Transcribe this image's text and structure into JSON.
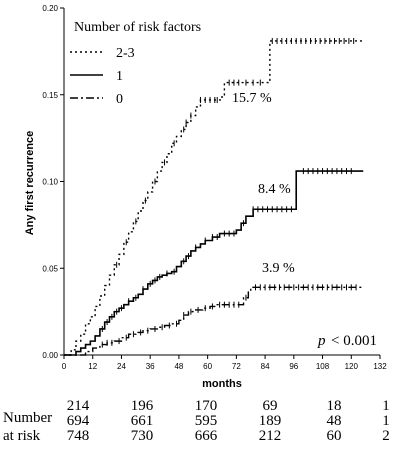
{
  "chart_data": {
    "type": "line",
    "subtype": "kaplan-meier step curves (cumulative incidence)",
    "xlabel": "months",
    "ylabel": "Any first recurrence",
    "xlim": [
      0,
      132
    ],
    "ylim": [
      0,
      0.2
    ],
    "x_ticks": [
      "0",
      "12",
      "24",
      "36",
      "48",
      "60",
      "72",
      "84",
      "96",
      "108",
      "120",
      "132"
    ],
    "y_ticks": [
      "0.00",
      "0.05",
      "0.10",
      "0.15",
      "0.20"
    ],
    "grid": false,
    "legend": {
      "title": "Number of risk factors",
      "placement": "top-left",
      "entries": [
        {
          "label": "2-3",
          "style": "dotted"
        },
        {
          "label": "1",
          "style": "solid"
        },
        {
          "label": "0",
          "style": "dash-dot"
        }
      ]
    },
    "series": [
      {
        "name": "2-3",
        "style": "dotted",
        "annotation": "15.7 %",
        "points": [
          [
            0,
            0
          ],
          [
            3,
            0.003
          ],
          [
            5,
            0.008
          ],
          [
            7,
            0.012
          ],
          [
            9,
            0.018
          ],
          [
            11,
            0.022
          ],
          [
            13,
            0.028
          ],
          [
            15,
            0.034
          ],
          [
            17,
            0.04
          ],
          [
            19,
            0.046
          ],
          [
            21,
            0.052
          ],
          [
            23,
            0.058
          ],
          [
            25,
            0.065
          ],
          [
            27,
            0.071
          ],
          [
            29,
            0.077
          ],
          [
            31,
            0.083
          ],
          [
            33,
            0.089
          ],
          [
            35,
            0.094
          ],
          [
            37,
            0.1
          ],
          [
            39,
            0.106
          ],
          [
            41,
            0.111
          ],
          [
            43,
            0.116
          ],
          [
            45,
            0.122
          ],
          [
            47,
            0.126
          ],
          [
            49,
            0.13
          ],
          [
            51,
            0.134
          ],
          [
            53,
            0.138
          ],
          [
            55,
            0.143
          ],
          [
            57,
            0.147
          ],
          [
            66,
            0.15
          ],
          [
            67,
            0.157
          ],
          [
            86,
            0.157
          ],
          [
            86,
            0.181
          ],
          [
            125,
            0.181
          ]
        ],
        "censor_x": [
          22,
          26,
          30,
          34,
          38,
          42,
          46,
          50,
          51,
          53,
          57,
          59,
          61,
          63,
          64,
          69,
          71,
          73,
          76,
          79,
          82,
          87,
          89,
          91,
          93,
          95,
          97,
          99,
          101,
          103,
          105,
          107,
          109,
          111,
          113,
          115,
          117,
          119,
          121
        ]
      },
      {
        "name": "1",
        "style": "solid",
        "annotation": "8.4 %",
        "points": [
          [
            0,
            0
          ],
          [
            3,
            0.0
          ],
          [
            5,
            0.002
          ],
          [
            7,
            0.004
          ],
          [
            9,
            0.006
          ],
          [
            11,
            0.008
          ],
          [
            13,
            0.011
          ],
          [
            15,
            0.015
          ],
          [
            17,
            0.019
          ],
          [
            19,
            0.022
          ],
          [
            21,
            0.025
          ],
          [
            23,
            0.027
          ],
          [
            25,
            0.029
          ],
          [
            27,
            0.031
          ],
          [
            29,
            0.033
          ],
          [
            31,
            0.035
          ],
          [
            33,
            0.038
          ],
          [
            35,
            0.041
          ],
          [
            37,
            0.043
          ],
          [
            39,
            0.045
          ],
          [
            41,
            0.046
          ],
          [
            43,
            0.047
          ],
          [
            45,
            0.048
          ],
          [
            47,
            0.051
          ],
          [
            49,
            0.054
          ],
          [
            51,
            0.057
          ],
          [
            53,
            0.06
          ],
          [
            55,
            0.062
          ],
          [
            57,
            0.064
          ],
          [
            59,
            0.066
          ],
          [
            62,
            0.068
          ],
          [
            65,
            0.07
          ],
          [
            72,
            0.072
          ],
          [
            74,
            0.076
          ],
          [
            76,
            0.08
          ],
          [
            79,
            0.084
          ],
          [
            97,
            0.084
          ],
          [
            97,
            0.106
          ],
          [
            125,
            0.106
          ]
        ],
        "censor_x": [
          16,
          18,
          20,
          22,
          24,
          27,
          30,
          33,
          36,
          38,
          40,
          43,
          46,
          50,
          52,
          55,
          59,
          62,
          64,
          67,
          69,
          71,
          75,
          79,
          81,
          83,
          85,
          87,
          89,
          91,
          93,
          95,
          100,
          102,
          104,
          106,
          108,
          110,
          112,
          114,
          116,
          118,
          120
        ]
      },
      {
        "name": "0",
        "style": "dash-dot",
        "annotation": "3.9 %",
        "points": [
          [
            0,
            0
          ],
          [
            6,
            0.0
          ],
          [
            9,
            0.002
          ],
          [
            12,
            0.004
          ],
          [
            15,
            0.006
          ],
          [
            18,
            0.007
          ],
          [
            21,
            0.008
          ],
          [
            24,
            0.01
          ],
          [
            27,
            0.012
          ],
          [
            30,
            0.013
          ],
          [
            33,
            0.014
          ],
          [
            36,
            0.015
          ],
          [
            39,
            0.016
          ],
          [
            42,
            0.017
          ],
          [
            45,
            0.018
          ],
          [
            48,
            0.02
          ],
          [
            50,
            0.023
          ],
          [
            52,
            0.025
          ],
          [
            55,
            0.026
          ],
          [
            58,
            0.027
          ],
          [
            61,
            0.028
          ],
          [
            64,
            0.029
          ],
          [
            74,
            0.029
          ],
          [
            75,
            0.033
          ],
          [
            77,
            0.037
          ],
          [
            78,
            0.039
          ],
          [
            125,
            0.039
          ]
        ],
        "censor_x": [
          16,
          18,
          20,
          23,
          26,
          29,
          32,
          35,
          38,
          41,
          44,
          47,
          50,
          53,
          56,
          59,
          62,
          65,
          67,
          69,
          71,
          73,
          76,
          80,
          82,
          84,
          86,
          88,
          90,
          92,
          94,
          96,
          98,
          100,
          102,
          104,
          106,
          108,
          110,
          112,
          114,
          116,
          118,
          120,
          122
        ]
      }
    ],
    "annotations": [
      {
        "text": "15.7 %"
      },
      {
        "text": "8.4 %"
      },
      {
        "text": "3.9 %"
      }
    ],
    "p_value": {
      "label": "p",
      "value": "< 0.001"
    },
    "risk_table": {
      "label_line1": "Number",
      "label_line2": "at risk",
      "rows": [
        [
          "214",
          "196",
          "170",
          "69",
          "18",
          "1"
        ],
        [
          "694",
          "661",
          "595",
          "189",
          "48",
          "1"
        ],
        [
          "748",
          "730",
          "666",
          "212",
          "60",
          "2"
        ]
      ]
    }
  }
}
